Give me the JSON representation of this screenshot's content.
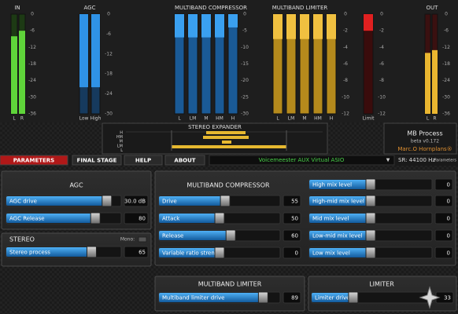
{
  "meters": [
    {
      "label": "IN",
      "ticks": [
        0,
        -6,
        -12,
        -18,
        -24,
        -30,
        -36
      ],
      "direction": "up",
      "color": "#5fd43a",
      "dark": "#1d3a14",
      "channels": [
        {
          "name": "L",
          "level": -8
        },
        {
          "name": "R",
          "level": -6
        }
      ]
    },
    {
      "label": "AGC",
      "ticks": [
        0,
        -6,
        -12,
        -18,
        -24,
        -30
      ],
      "direction": "down",
      "color": "#2f92e6",
      "dark": "#163a5e",
      "channels": [
        {
          "name": "Low",
          "level": -22
        },
        {
          "name": "High",
          "level": -22
        }
      ]
    },
    {
      "label": "MULTIBAND COMPRESSOR",
      "ticks": [
        0,
        -5,
        -10,
        -15,
        -20,
        -25,
        -30
      ],
      "direction": "down",
      "color": "#3aa0f0",
      "dark": "#1a5a96",
      "channels": [
        {
          "name": "L",
          "level": -7
        },
        {
          "name": "LM",
          "level": -7
        },
        {
          "name": "M",
          "level": -7
        },
        {
          "name": "HM",
          "level": -7
        },
        {
          "name": "H",
          "level": -4
        }
      ]
    },
    {
      "label": "MULTIBAND LIMITER",
      "ticks": [
        0,
        -2,
        -4,
        -6,
        -8,
        -10,
        -12
      ],
      "direction": "down",
      "color": "#f0c040",
      "dark": "#b58a1c",
      "channels": [
        {
          "name": "L",
          "level": -3
        },
        {
          "name": "LM",
          "level": -3
        },
        {
          "name": "M",
          "level": -3
        },
        {
          "name": "HM",
          "level": -3
        },
        {
          "name": "H",
          "level": -3
        }
      ]
    },
    {
      "ticks": [
        0,
        -2,
        -4,
        -6,
        -8,
        -10,
        -12
      ],
      "direction": "down",
      "color": "#e02020",
      "dark": "#3a0c0c",
      "channels": [
        {
          "name": "Limit",
          "level": -2
        }
      ]
    },
    {
      "label": "OUT",
      "ticks": [
        0,
        -6,
        -12,
        -18,
        -24,
        -30,
        -36
      ],
      "direction": "up",
      "color": "#eab630",
      "dark": "#3a1010",
      "channels": [
        {
          "name": "L",
          "level": -14
        },
        {
          "name": "R",
          "level": -13
        }
      ]
    }
  ],
  "stereo_expander": {
    "title": "STEREO EXPANDER",
    "bands": [
      "H",
      "HM",
      "M",
      "LM",
      "L"
    ]
  },
  "info": {
    "name": "MB Process",
    "version": "beta v0.172",
    "author": "Marc.O Hornplans®"
  },
  "tabs": [
    "PARAMETERS",
    "FINAL STAGE",
    "HELP",
    "ABOUT"
  ],
  "device": "Voicemeester AUX Virtual ASIO",
  "sample_rate": "SR: 44100 Hz",
  "view": "Parameters",
  "panels": [
    {
      "title": "AGC",
      "sliders": [
        {
          "label": "AGC drive",
          "value": 30,
          "value_label": "30.0 dB",
          "range": [
            0,
            33
          ]
        },
        {
          "label": "AGC Release",
          "value": 80,
          "range": [
            0,
            100
          ]
        }
      ]
    },
    {
      "title": "STEREO",
      "note": "Mono:",
      "sliders": [
        {
          "label": "Stereo process",
          "value": 65,
          "range": [
            0,
            85
          ]
        }
      ]
    },
    {
      "title": "MULTIBAND COMPRESSOR",
      "sliders": [
        {
          "label": "Drive",
          "value": 55,
          "range": [
            0,
            100
          ]
        },
        {
          "label": "Attack",
          "value": 50,
          "range": [
            0,
            100
          ]
        },
        {
          "label": "Release",
          "value": 60,
          "range": [
            0,
            100
          ]
        },
        {
          "label": "Variable ratio strength",
          "value": 0,
          "range": [
            -100,
            100
          ]
        },
        {
          "label": "High mix level",
          "value": 0,
          "range": [
            -12,
            12
          ]
        },
        {
          "label": "High-mid mix level",
          "value": 0,
          "range": [
            -12,
            12
          ]
        },
        {
          "label": "Mid mix level",
          "value": 0,
          "range": [
            -12,
            12
          ]
        },
        {
          "label": "Low-mid mix level",
          "value": 0,
          "range": [
            -12,
            12
          ]
        },
        {
          "label": "Low mix level",
          "value": 0,
          "range": [
            -12,
            12
          ]
        }
      ]
    },
    {
      "title": "MULTIBAND LIMITER",
      "sliders": [
        {
          "label": "Multiband limiter drive",
          "value": 89,
          "range": [
            0,
            100
          ]
        }
      ]
    },
    {
      "title": "LIMITER",
      "sliders": [
        {
          "label": "Limiter drive",
          "value": 33,
          "range": [
            0,
            100
          ]
        }
      ]
    }
  ]
}
